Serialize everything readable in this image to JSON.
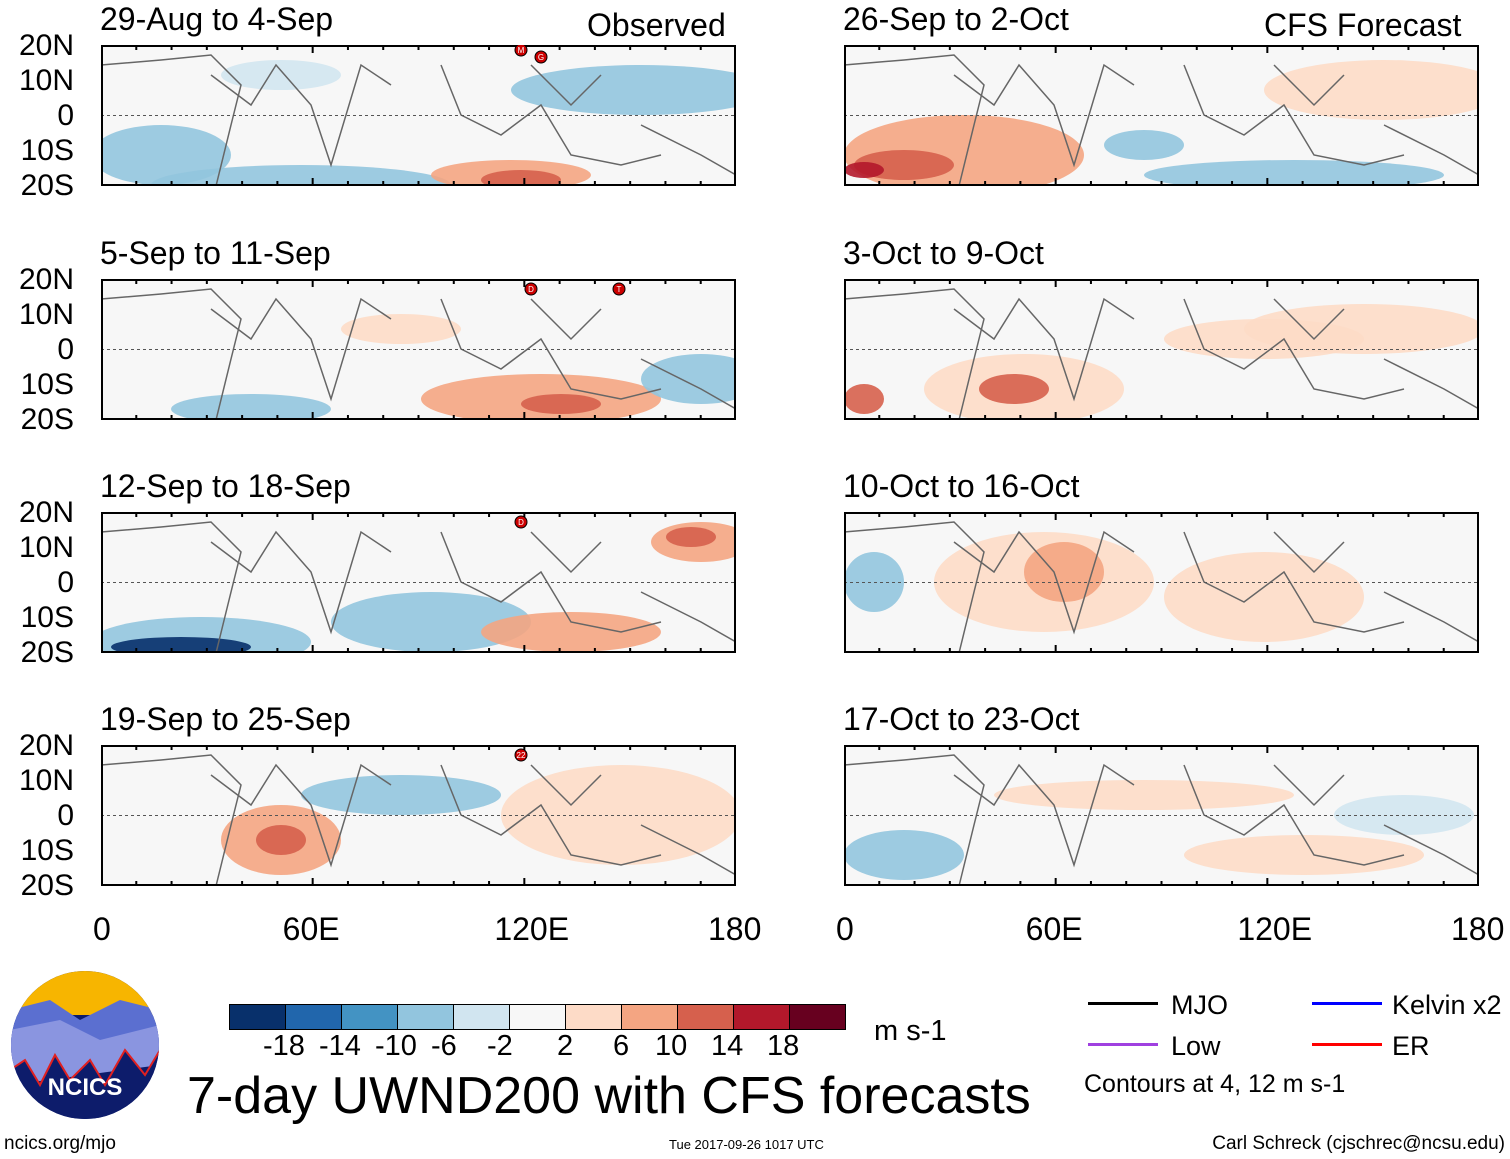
{
  "left_label": "Observed",
  "right_label": "CFS Forecast",
  "panels_left": [
    {
      "title": "29-Aug to 4-Sep",
      "storms": [
        "M",
        "G"
      ]
    },
    {
      "title": "5-Sep to 11-Sep",
      "storms": [
        "D",
        "T"
      ]
    },
    {
      "title": "12-Sep to 18-Sep",
      "storms": [
        "D"
      ]
    },
    {
      "title": "19-Sep to 25-Sep",
      "storms": [
        "22"
      ]
    }
  ],
  "panels_right": [
    {
      "title": "26-Sep to 2-Oct"
    },
    {
      "title": "3-Oct to 9-Oct"
    },
    {
      "title": "10-Oct to 16-Oct"
    },
    {
      "title": "17-Oct to 23-Oct"
    }
  ],
  "lat_labels": [
    "20N",
    "10N",
    "0",
    "10S",
    "20S"
  ],
  "lon_labels": [
    "0",
    "60E",
    "120E",
    "180"
  ],
  "colorbar": {
    "colors": [
      "#08306b",
      "#2166ac",
      "#4393c3",
      "#92c5de",
      "#d1e5f0",
      "#f7f7f7",
      "#fddbc7",
      "#f4a582",
      "#d6604d",
      "#b2182b",
      "#67001f"
    ],
    "ticks": [
      "-18",
      "-14",
      "-10",
      "-6",
      "-2",
      "2",
      "6",
      "10",
      "14",
      "18"
    ],
    "units": "m s-1"
  },
  "legend": {
    "items": [
      {
        "label": "MJO",
        "color": "#000000"
      },
      {
        "label": "Kelvin x2",
        "color": "#0000ff"
      },
      {
        "label": "Low",
        "color": "#a040e0"
      },
      {
        "label": "ER",
        "color": "#ff0000"
      }
    ],
    "note": "Contours at 4, 12 m s-1"
  },
  "title": "7-day UWND200 with CFS forecasts",
  "logo_text": "NCICS",
  "footer": {
    "url": "ncics.org/mjo",
    "timestamp": "Tue 2017-09-26 1017 UTC",
    "author": "Carl Schreck (cjschrec@ncsu.edu)"
  }
}
